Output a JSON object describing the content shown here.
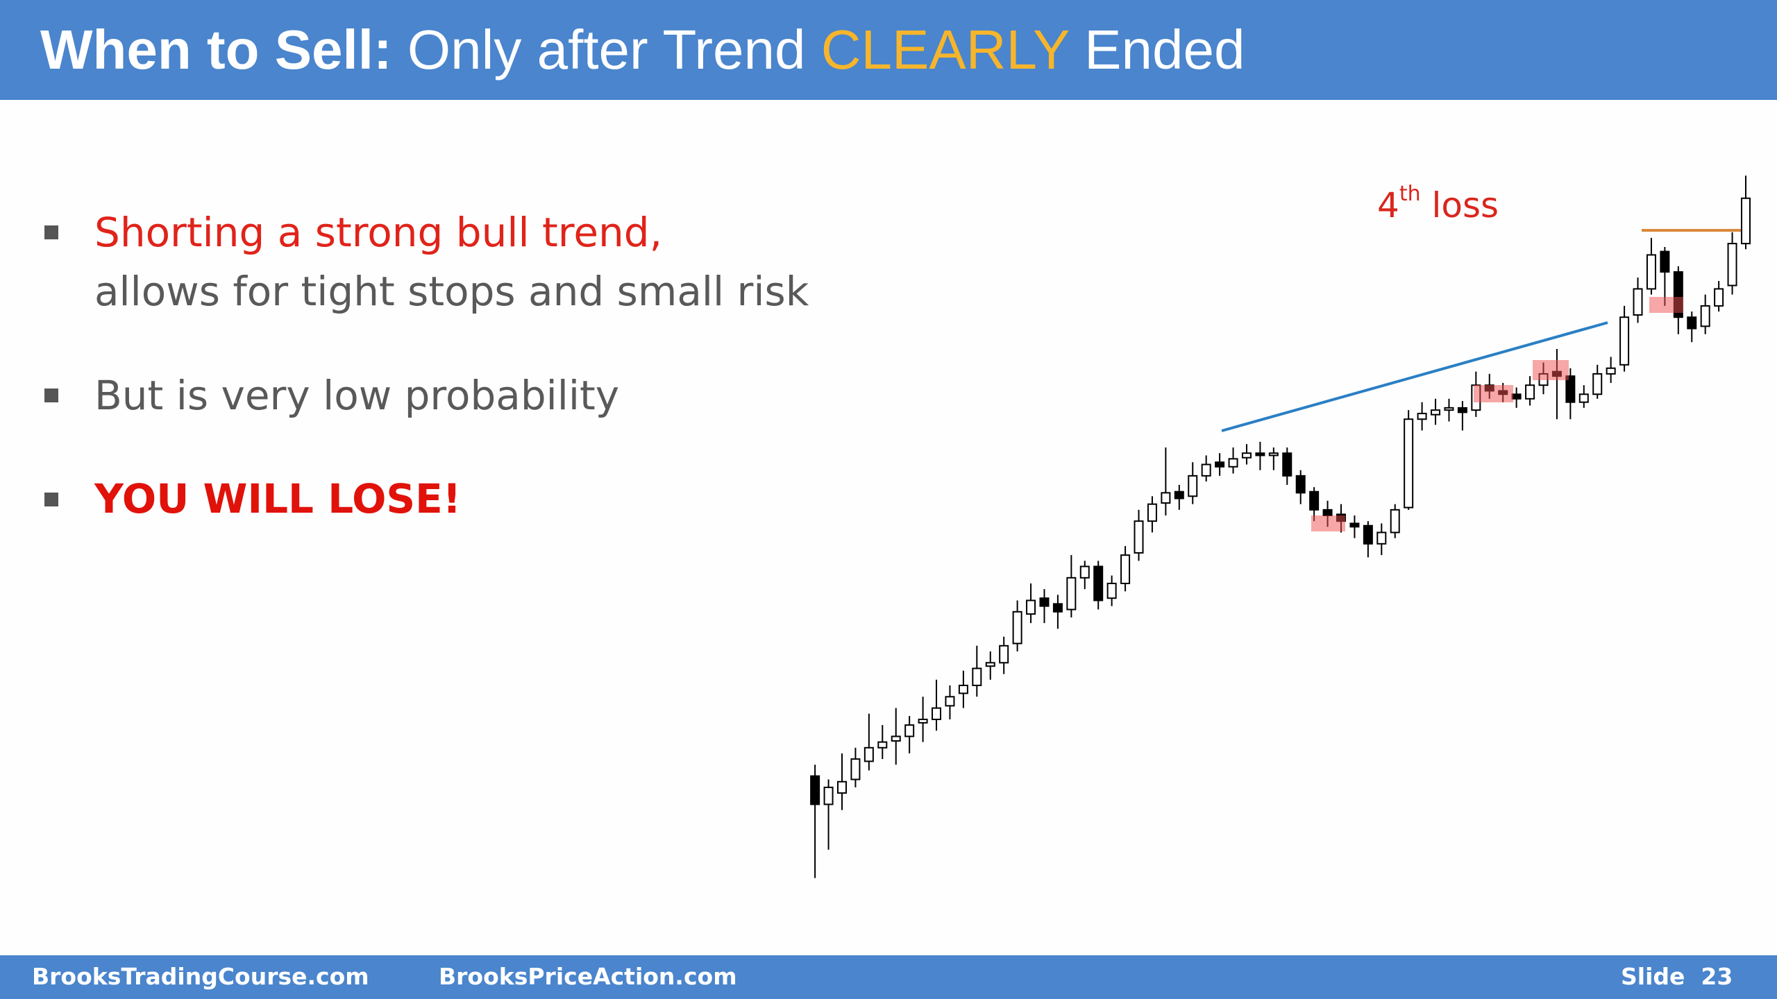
{
  "header": {
    "title": {
      "bold": "When to Sell:",
      "plain": "Only after Trend",
      "highlight": "CLEARLY",
      "end": "Ended"
    }
  },
  "bullets": [
    {
      "lines": [
        "Shorting a strong bull trend,",
        "allows for tight stops and small risk"
      ]
    },
    {
      "lines": [
        "But is very low probability"
      ]
    },
    {
      "lines": [
        "YOU WILL LOSE!"
      ]
    }
  ],
  "annotation": {
    "number": "4",
    "suffix": "th",
    "text": "loss"
  },
  "chart": {
    "type": "candlestick",
    "open": [
      115,
      90,
      100,
      112,
      128,
      140,
      146,
      150,
      162,
      165,
      177,
      188,
      195,
      212,
      215,
      232,
      258,
      272,
      267,
      262,
      290,
      300,
      272,
      285,
      312,
      340,
      356,
      366,
      362,
      380,
      392,
      388,
      396,
      400,
      398,
      400,
      380,
      366,
      350,
      346,
      338,
      336,
      320,
      330,
      352,
      430,
      434,
      438,
      440,
      438,
      460,
      455,
      452,
      448,
      460,
      472,
      468,
      445,
      452,
      470,
      478,
      522,
      545,
      578,
      560,
      520,
      512,
      530,
      548,
      585
    ],
    "high": [
      125,
      112,
      135,
      140,
      170,
      160,
      175,
      168,
      185,
      200,
      195,
      208,
      230,
      225,
      238,
      270,
      285,
      280,
      275,
      310,
      305,
      305,
      292,
      318,
      350,
      362,
      405,
      372,
      392,
      398,
      400,
      405,
      408,
      410,
      405,
      405,
      385,
      370,
      358,
      355,
      345,
      340,
      338,
      355,
      438,
      445,
      448,
      448,
      446,
      472,
      470,
      462,
      458,
      468,
      480,
      492,
      475,
      460,
      478,
      485,
      530,
      555,
      590,
      582,
      565,
      525,
      540,
      552,
      595,
      645
    ],
    "low": [
      25,
      50,
      85,
      105,
      120,
      130,
      125,
      135,
      145,
      155,
      165,
      175,
      185,
      200,
      205,
      225,
      250,
      250,
      245,
      255,
      280,
      262,
      265,
      278,
      305,
      330,
      345,
      350,
      355,
      375,
      380,
      382,
      390,
      385,
      385,
      372,
      355,
      340,
      335,
      330,
      325,
      308,
      310,
      325,
      350,
      420,
      425,
      428,
      420,
      432,
      448,
      445,
      440,
      442,
      452,
      430,
      430,
      440,
      448,
      462,
      472,
      515,
      540,
      530,
      505,
      498,
      505,
      525,
      540,
      580
    ],
    "close": [
      90,
      105,
      110,
      130,
      140,
      145,
      150,
      160,
      165,
      175,
      185,
      195,
      210,
      215,
      230,
      260,
      270,
      265,
      260,
      290,
      300,
      270,
      285,
      310,
      340,
      355,
      365,
      360,
      380,
      390,
      388,
      395,
      400,
      398,
      400,
      380,
      365,
      350,
      345,
      340,
      335,
      320,
      330,
      350,
      430,
      435,
      438,
      440,
      436,
      460,
      455,
      452,
      448,
      460,
      470,
      468,
      445,
      452,
      470,
      475,
      520,
      545,
      575,
      560,
      520,
      510,
      530,
      545,
      585,
      625
    ]
  },
  "footer": {
    "left": "BrooksTradingCourse.com",
    "middle": "BrooksPriceAction.com",
    "slide_label": "Slide",
    "slide_number": "23"
  }
}
